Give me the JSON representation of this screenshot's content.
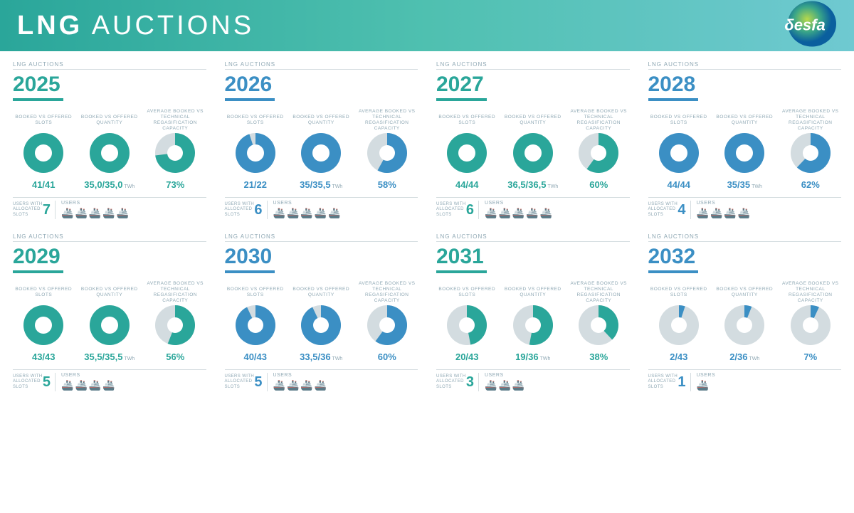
{
  "banner": {
    "title_bold": "LNG",
    "title_light": "AUCTIONS"
  },
  "logo": {
    "text": "δesfa",
    "bg1": "#0a5f9e",
    "bg2": "#3aa688",
    "bg3": "#b8d94a"
  },
  "palette": {
    "teal": "#2aa69a",
    "blue": "#3b8fc4",
    "grey": "#d3dce0",
    "headgrey": "#8fa8b4"
  },
  "labels": {
    "card_header": "LNG AUCTIONS",
    "metric1": "BOOKED vs OFFERED SLOTS",
    "metric2": "BOOKED vs OFFERED QUANTITY",
    "metric3": "AVERAGE BOOKED vs TECHNICAL REGASIFICATION CAPACITY",
    "users_left": "USERS WITH ALLOCATED SLOTS",
    "users_right": "USERS",
    "twh": "TWh"
  },
  "cards": [
    {
      "year": "2025",
      "accent": "#2aa69a",
      "slots": {
        "val": "41/41",
        "pct": 100,
        "color": "#2aa69a",
        "ring": true
      },
      "qty": {
        "val": "35,0/35,0",
        "pct": 100,
        "color": "#2aa69a",
        "ring": true,
        "unit": "TWh"
      },
      "cap": {
        "val": "73%",
        "pct": 73,
        "color": "#2aa69a",
        "ring": false
      },
      "users": 7,
      "ships": 5
    },
    {
      "year": "2026",
      "accent": "#3b8fc4",
      "slots": {
        "val": "21/22",
        "pct": 95,
        "color": "#3b8fc4",
        "ring": true
      },
      "qty": {
        "val": "35/35,5",
        "pct": 99,
        "color": "#3b8fc4",
        "ring": true,
        "unit": "TWh"
      },
      "cap": {
        "val": "58%",
        "pct": 58,
        "color": "#3b8fc4",
        "ring": false
      },
      "users": 6,
      "ships": 5
    },
    {
      "year": "2027",
      "accent": "#2aa69a",
      "slots": {
        "val": "44/44",
        "pct": 100,
        "color": "#2aa69a",
        "ring": true
      },
      "qty": {
        "val": "36,5/36,5",
        "pct": 100,
        "color": "#2aa69a",
        "ring": true,
        "unit": "TWh"
      },
      "cap": {
        "val": "60%",
        "pct": 60,
        "color": "#2aa69a",
        "ring": false
      },
      "users": 6,
      "ships": 5
    },
    {
      "year": "2028",
      "accent": "#3b8fc4",
      "slots": {
        "val": "44/44",
        "pct": 100,
        "color": "#3b8fc4",
        "ring": true
      },
      "qty": {
        "val": "35/35",
        "pct": 100,
        "color": "#3b8fc4",
        "ring": true,
        "unit": "TWh"
      },
      "cap": {
        "val": "62%",
        "pct": 62,
        "color": "#3b8fc4",
        "ring": false
      },
      "users": 4,
      "ships": 4
    },
    {
      "year": "2029",
      "accent": "#2aa69a",
      "slots": {
        "val": "43/43",
        "pct": 100,
        "color": "#2aa69a",
        "ring": true
      },
      "qty": {
        "val": "35,5/35,5",
        "pct": 100,
        "color": "#2aa69a",
        "ring": true,
        "unit": "TWh"
      },
      "cap": {
        "val": "56%",
        "pct": 56,
        "color": "#2aa69a",
        "ring": false
      },
      "users": 5,
      "ships": 4
    },
    {
      "year": "2030",
      "accent": "#3b8fc4",
      "slots": {
        "val": "40/43",
        "pct": 93,
        "color": "#3b8fc4",
        "ring": false
      },
      "qty": {
        "val": "33,5/36",
        "pct": 93,
        "color": "#3b8fc4",
        "ring": false,
        "unit": "TWh"
      },
      "cap": {
        "val": "60%",
        "pct": 60,
        "color": "#3b8fc4",
        "ring": false
      },
      "users": 5,
      "ships": 4
    },
    {
      "year": "2031",
      "accent": "#2aa69a",
      "slots": {
        "val": "20/43",
        "pct": 47,
        "color": "#2aa69a",
        "ring": false
      },
      "qty": {
        "val": "19/36",
        "pct": 53,
        "color": "#2aa69a",
        "ring": false,
        "unit": "TWh"
      },
      "cap": {
        "val": "38%",
        "pct": 38,
        "color": "#2aa69a",
        "ring": false
      },
      "users": 3,
      "ships": 3
    },
    {
      "year": "2032",
      "accent": "#3b8fc4",
      "slots": {
        "val": "2/43",
        "pct": 5,
        "color": "#3b8fc4",
        "ring": false
      },
      "qty": {
        "val": "2/36",
        "pct": 6,
        "color": "#3b8fc4",
        "ring": false,
        "unit": "TWh"
      },
      "cap": {
        "val": "7%",
        "pct": 7,
        "color": "#3b8fc4",
        "ring": false
      },
      "users": 1,
      "ships": 1
    }
  ]
}
